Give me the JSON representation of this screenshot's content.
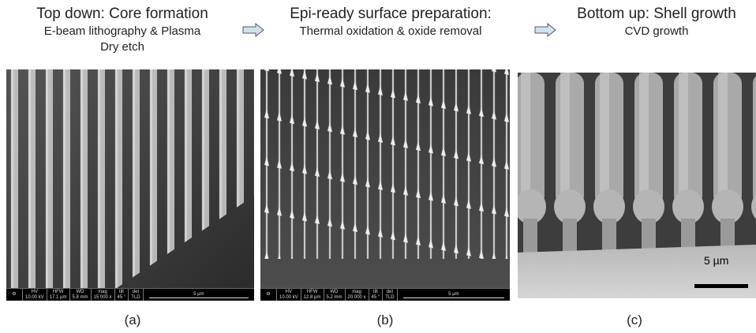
{
  "panels": [
    {
      "title": "Top down: Core formation",
      "subtitle": [
        "E-beam lithography & Plasma",
        "Dry etch"
      ],
      "caption": "(a)",
      "infobar": {
        "headers": [
          "HV",
          "HFW",
          "WD",
          "mag",
          "tilt",
          "det"
        ],
        "values": [
          "10.00 kV",
          "17.1 µm",
          "5.8 mm",
          "15 000 x",
          "45 °",
          "TLD"
        ],
        "scale": "5 µm"
      }
    },
    {
      "title": "Epi-ready surface preparation:",
      "subtitle": [
        "Thermal oxidation & oxide removal"
      ],
      "caption": "(b)",
      "infobar": {
        "headers": [
          "HV",
          "HFW",
          "WD",
          "mag",
          "tilt",
          "det"
        ],
        "values": [
          "10.00 kV",
          "12.8 µm",
          "5.2 mm",
          "20 000 x",
          "45 °",
          "TLD"
        ],
        "scale": "5 µm"
      }
    },
    {
      "title": "Bottom up: Shell growth",
      "subtitle": [
        "CVD growth"
      ],
      "caption": "(c)",
      "scale": "5 µm"
    }
  ]
}
